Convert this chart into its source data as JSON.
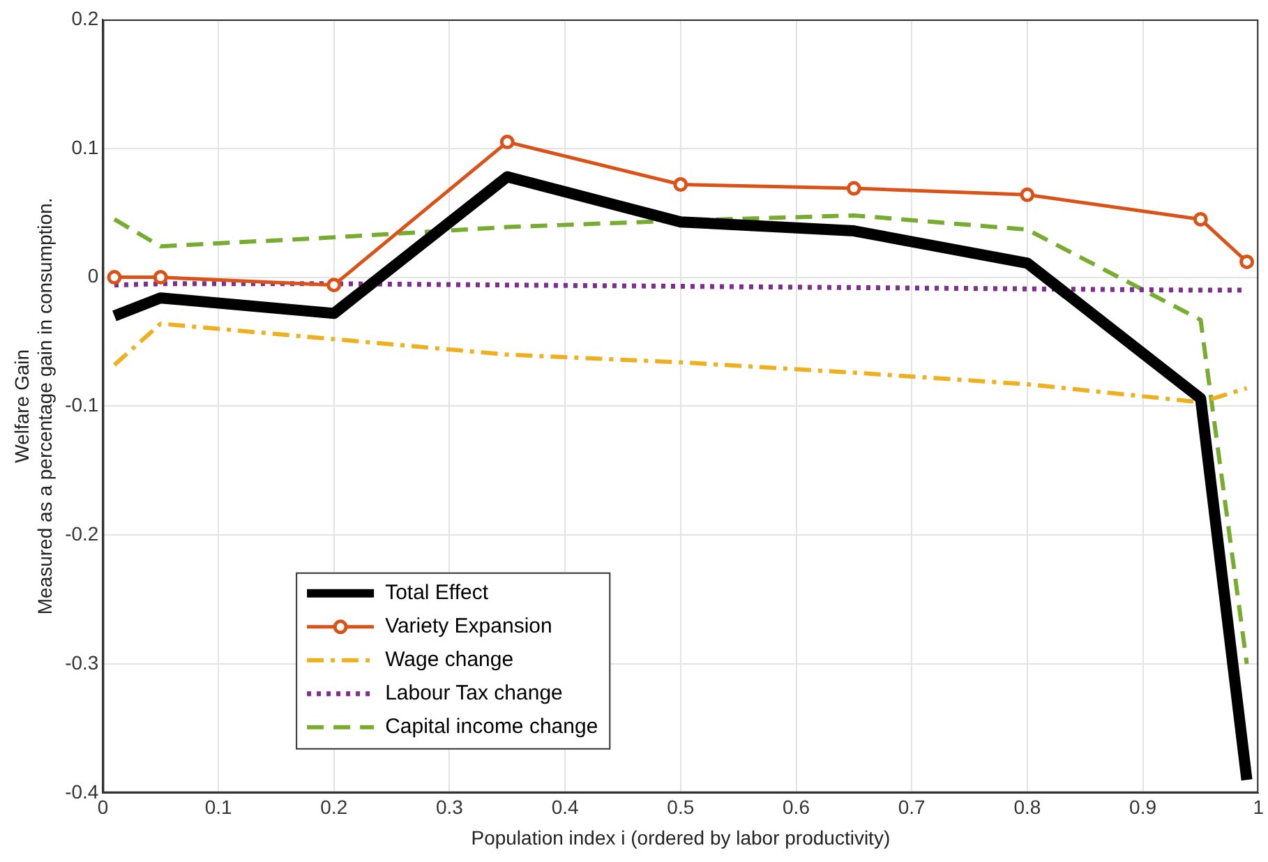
{
  "chart_data": {
    "type": "line",
    "xlabel": "Population index i (ordered by labor productivity)",
    "ylabel": "Welfare Gain\nMeasured as a percentage gain in consumption.",
    "x": [
      0.01,
      0.05,
      0.2,
      0.35,
      0.5,
      0.65,
      0.8,
      0.95,
      0.99
    ],
    "series": [
      {
        "name": "Total Effect",
        "color": "#000000",
        "line_style": "solid",
        "marker": "none",
        "values": [
          -0.03,
          -0.016,
          -0.028,
          0.078,
          0.043,
          0.036,
          0.011,
          -0.094,
          -0.39
        ]
      },
      {
        "name": "Variety Expansion",
        "color": "#d95319",
        "line_style": "solid",
        "marker": "circle",
        "values": [
          0.0,
          0.0,
          -0.006,
          0.105,
          0.072,
          0.069,
          0.064,
          0.045,
          0.012
        ]
      },
      {
        "name": "Wage change",
        "color": "#edb120",
        "line_style": "dashdot",
        "marker": "none",
        "values": [
          -0.068,
          -0.036,
          -0.048,
          -0.06,
          -0.066,
          -0.074,
          -0.083,
          -0.097,
          -0.086
        ]
      },
      {
        "name": "Labour Tax change",
        "color": "#7e2f8e",
        "line_style": "dotted",
        "marker": "none",
        "values": [
          -0.006,
          -0.005,
          -0.005,
          -0.006,
          -0.007,
          -0.008,
          -0.009,
          -0.01,
          -0.01
        ]
      },
      {
        "name": "Capital income change",
        "color": "#77ac30",
        "line_style": "dashed",
        "marker": "none",
        "values": [
          0.045,
          0.024,
          0.031,
          0.039,
          0.044,
          0.048,
          0.037,
          -0.033,
          -0.3
        ]
      }
    ],
    "xlim": [
      0,
      1
    ],
    "xticks": [
      0,
      0.1,
      0.2,
      0.3,
      0.4,
      0.5,
      0.6,
      0.7,
      0.8,
      0.9,
      1
    ],
    "ylim": [
      -0.4,
      0.2
    ],
    "yticks": [
      -0.4,
      -0.3,
      -0.2,
      -0.1,
      0,
      0.1,
      0.2
    ],
    "grid": true,
    "legend": "bottom left"
  }
}
